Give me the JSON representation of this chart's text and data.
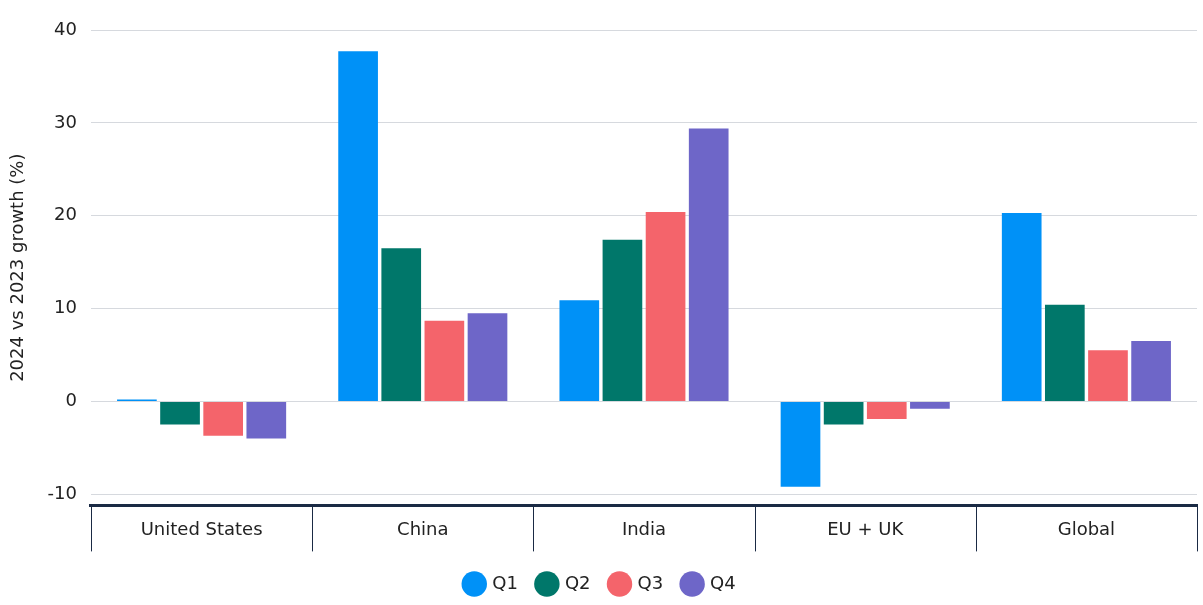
{
  "chart_data": {
    "type": "bar",
    "ylabel": "2024 vs 2023 growth (%)",
    "categories": [
      "United States",
      "China",
      "India",
      "EU + UK",
      "Global"
    ],
    "series": [
      {
        "name": "Q1",
        "color": "#0091f7",
        "values": [
          0.2,
          37.7,
          10.9,
          -9.2,
          20.3
        ]
      },
      {
        "name": "Q2",
        "color": "#00776a",
        "values": [
          -2.5,
          16.5,
          17.4,
          -2.5,
          10.4
        ]
      },
      {
        "name": "Q3",
        "color": "#f4646b",
        "values": [
          -3.7,
          8.7,
          20.4,
          -1.9,
          5.5
        ]
      },
      {
        "name": "Q4",
        "color": "#6e66c8",
        "values": [
          -4.0,
          9.5,
          29.4,
          -0.8,
          6.5
        ]
      }
    ],
    "ylim": [
      -11.2,
      40
    ],
    "yticks": [
      -10,
      0,
      10,
      20,
      30,
      40
    ],
    "grid": "y",
    "legend": "bottom",
    "marker": "circle"
  }
}
